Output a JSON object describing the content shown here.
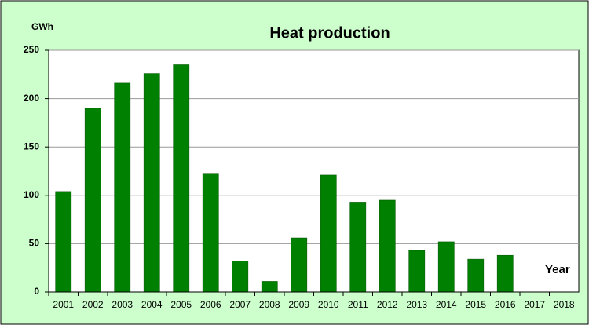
{
  "chart_data": {
    "type": "bar",
    "title": "Heat production",
    "y_label": "GWh",
    "x_label": "Year",
    "categories": [
      "2001",
      "2002",
      "2003",
      "2004",
      "2005",
      "2006",
      "2007",
      "2008",
      "2009",
      "2010",
      "2011",
      "2012",
      "2013",
      "2014",
      "2015",
      "2016",
      "2017",
      "2018"
    ],
    "values": [
      104,
      190,
      216,
      226,
      235,
      122,
      32,
      11,
      56,
      121,
      93,
      95,
      43,
      52,
      34,
      38,
      null,
      null
    ],
    "color": "#008000",
    "ylim": [
      0,
      250
    ],
    "yticks": [
      0,
      50,
      100,
      150,
      200,
      250
    ],
    "grid": true
  }
}
